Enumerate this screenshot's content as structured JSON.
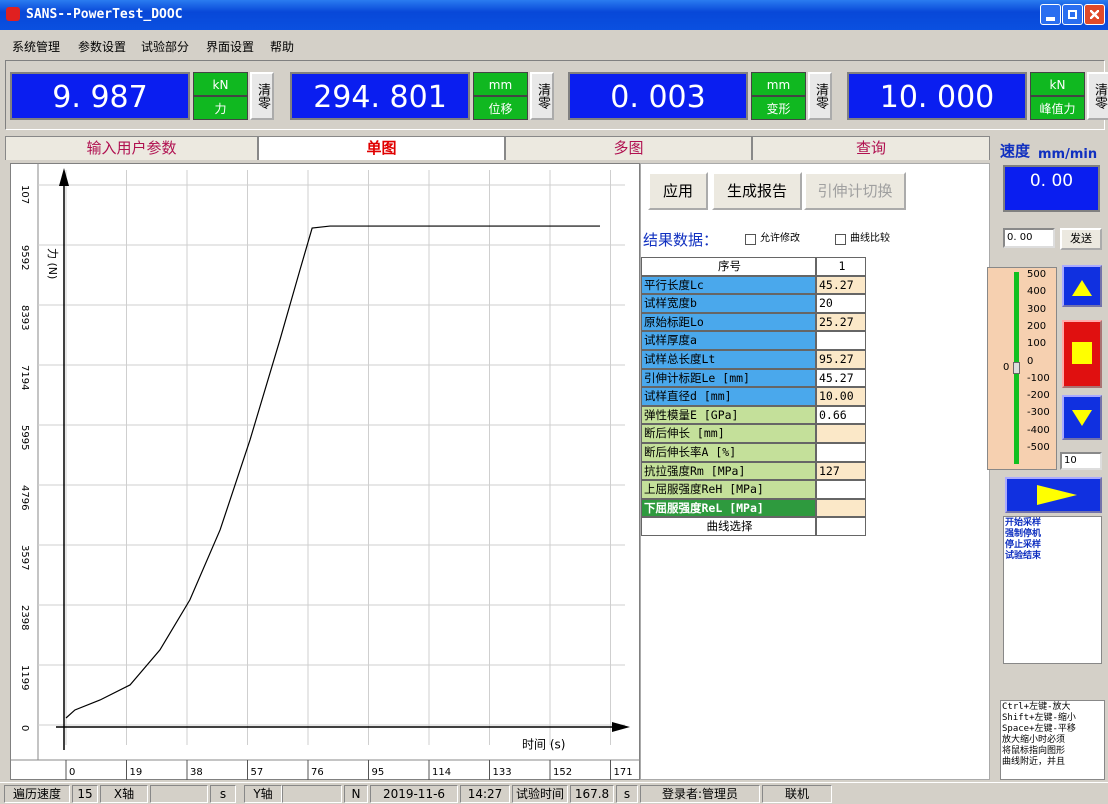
{
  "window": {
    "title": "SANS--PowerTest_DOOC"
  },
  "menu": [
    "系统管理",
    "参数设置",
    "试验部分",
    "界面设置",
    "帮助"
  ],
  "readouts": [
    {
      "value": "9. 987",
      "unit": "kN",
      "name": "力",
      "button": "清零"
    },
    {
      "value": "294. 801",
      "unit": "mm",
      "name": "位移",
      "button": "清零"
    },
    {
      "value": "0. 003",
      "unit": "mm",
      "name": "变形",
      "button": "清零"
    },
    {
      "value": "10. 000",
      "unit": "kN",
      "name": "峰值力",
      "button": "清零"
    }
  ],
  "tabs": [
    "输入用户参数",
    "单图",
    "多图",
    "查询"
  ],
  "active_tab": 1,
  "plot": {
    "type": "line",
    "ylabel": "力 (N)",
    "xlabel": "时间 (s)",
    "color": "#000000",
    "grid": true,
    "yticks": [
      0,
      1199,
      2398,
      3597,
      4796,
      5995,
      7194,
      8393,
      9592,
      {
        "value": 10791,
        "label": "107"
      }
    ],
    "xticks": [
      0,
      19,
      38,
      57,
      76,
      95,
      114,
      133,
      152,
      171
    ],
    "x": [
      0,
      2.8,
      10.7,
      20.1,
      29.5,
      38.9,
      48.4,
      57.8,
      67.2,
      73.5,
      77.3,
      82.9,
      167.7
    ],
    "values": [
      140,
      300,
      500,
      800,
      1500,
      2500,
      3900,
      5700,
      7700,
      9100,
      9930,
      9970,
      9970
    ]
  },
  "buttons": [
    "应用",
    "生成报告",
    "引伸计切换"
  ],
  "results": {
    "title": "结果数据：",
    "options": [
      "允许修改",
      "曲线比较"
    ],
    "header": [
      "序号",
      "1"
    ],
    "rows": [
      {
        "label": "平行长度Lc",
        "value": "45.27",
        "color": "#4aa8ec"
      },
      {
        "label": "试样宽度b",
        "value": "20",
        "color": "#4aa8ec"
      },
      {
        "label": "原始标距Lo",
        "value": "25.27",
        "color": "#4aa8ec"
      },
      {
        "label": "试样厚度a",
        "color": "#4aa8ec"
      },
      {
        "label": "试样总长度Lt",
        "value": "95.27",
        "color": "#4aa8ec"
      },
      {
        "label": "引伸计标距Le  [mm]",
        "value": "45.27",
        "color": "#4aa8ec"
      },
      {
        "label": "试样直径d  [mm]",
        "value": "10.00",
        "color": "#4aa8ec"
      },
      {
        "label": "弹性模量E  [GPa]",
        "value": "0.66",
        "color": "#c4e09a"
      },
      {
        "label": "断后伸长  [mm]",
        "color": "#c4e09a"
      },
      {
        "label": "断后伸长率A  [%]",
        "color": "#c4e09a"
      },
      {
        "label": "抗拉强度Rm  [MPa]",
        "value": "127",
        "color": "#c4e09a"
      },
      {
        "label": "上屈服强度ReH  [MPa]",
        "color": "#c4e09a"
      },
      {
        "label": "下屈服强度ReL  [MPa]",
        "color": "#2e9a3e"
      }
    ],
    "footer": "曲线选择"
  },
  "speed": {
    "label": "速度",
    "unit": "mm/min",
    "value": "0. 00",
    "input": "0. 00",
    "send": "发送",
    "scale": [
      500,
      400,
      300,
      200,
      100,
      0,
      -100,
      -200,
      -300,
      -400,
      -500
    ],
    "zero": "0",
    "step": "10"
  },
  "log": [
    "开始采样",
    "强制停机",
    "停止采样",
    "试验结束"
  ],
  "help": [
    "Ctrl+左键-放大",
    "Shift+左键-缩小",
    "Space+左键-平移",
    "放大缩小时必须",
    "将鼠标指向图形",
    "曲线附近，并且"
  ],
  "status": [
    "遍历速度",
    "15",
    "X轴",
    "s",
    "Y轴",
    "N",
    "2019-11-6",
    "14:27",
    "试验时间",
    "167.8",
    "s",
    "登录者:管理员",
    "联机"
  ]
}
